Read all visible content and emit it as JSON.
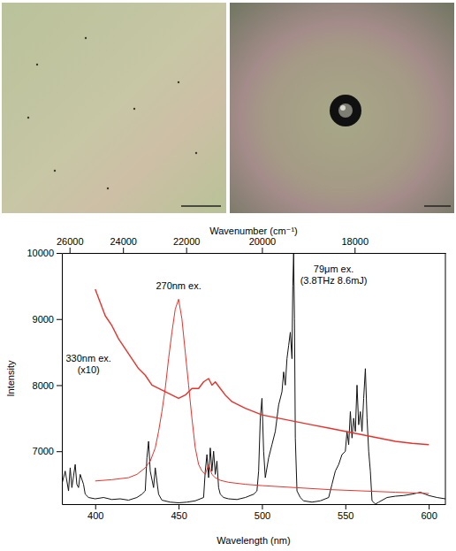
{
  "chart_data": {
    "type": "line",
    "xlabel": "Wavelength (nm)",
    "ylabel": "Intensity",
    "x2label": "Wavenumber (cm⁻¹)",
    "xlim": [
      380,
      610
    ],
    "xticks": [
      400,
      450,
      500,
      550,
      600
    ],
    "x2ticks": [
      {
        "value": 384.62,
        "label": "26000"
      },
      {
        "value": 416.67,
        "label": "24000"
      },
      {
        "value": 454.55,
        "label": "22000"
      },
      {
        "value": 500,
        "label": "20000"
      },
      {
        "value": 555.56,
        "label": "18000"
      }
    ],
    "ylim": [
      6200,
      10000
    ],
    "yticks": [
      7000,
      8000,
      9000,
      10000
    ],
    "grid": false,
    "series": [
      {
        "color": "#111111",
        "x": [
          380,
          382,
          384,
          385,
          386,
          388,
          389,
          390,
          391,
          393,
          394,
          396,
          400,
          405,
          410,
          415,
          420,
          425,
          428,
          430,
          431,
          432,
          433,
          435,
          436,
          437,
          438,
          440,
          445,
          450,
          455,
          460,
          465,
          466,
          467,
          468,
          469,
          470,
          471,
          472,
          473,
          474,
          475,
          477,
          480,
          485,
          490,
          495,
          497,
          498,
          499,
          500,
          501,
          502,
          504,
          506,
          508,
          510,
          512,
          513,
          514,
          515,
          516,
          517,
          518,
          518.5,
          519,
          519.5,
          520,
          521,
          523,
          525,
          530,
          535,
          540,
          542,
          544,
          546,
          548,
          550,
          551,
          552,
          553,
          554,
          555,
          556,
          557,
          558,
          559,
          560,
          561,
          562,
          563,
          564,
          565,
          566,
          568,
          570,
          575,
          580,
          585,
          590,
          595,
          600,
          605,
          610
        ],
        "values": [
          6500,
          6700,
          6400,
          6750,
          6450,
          6800,
          6500,
          6450,
          6650,
          6500,
          6350,
          6300,
          6280,
          6300,
          6270,
          6280,
          6260,
          6300,
          6350,
          6400,
          6900,
          7150,
          6700,
          6450,
          6750,
          6550,
          6350,
          6260,
          6230,
          6220,
          6230,
          6250,
          6300,
          6700,
          6950,
          6600,
          7050,
          6700,
          7000,
          6650,
          6850,
          6450,
          6350,
          6300,
          6280,
          6270,
          6300,
          6350,
          6400,
          6700,
          7500,
          7800,
          7000,
          6600,
          6900,
          7100,
          7300,
          7700,
          7900,
          8200,
          8000,
          8400,
          8600,
          8800,
          8400,
          9500,
          10000,
          9000,
          7200,
          6400,
          6300,
          6250,
          6230,
          6250,
          6300,
          6500,
          6700,
          6800,
          6950,
          7000,
          7300,
          7100,
          7600,
          7200,
          7500,
          7300,
          8000,
          7400,
          7600,
          7300,
          7800,
          8250,
          7500,
          7000,
          6700,
          6250,
          6200,
          6230,
          6300,
          6320,
          6330,
          6350,
          6380,
          6330,
          6300,
          6280
        ]
      },
      {
        "color": "#e8322c",
        "x": [
          400,
          410,
          420,
          425,
          430,
          433,
          436,
          438,
          440,
          442,
          444,
          446,
          448,
          450,
          452,
          454,
          456,
          458,
          460,
          462,
          464,
          466,
          468,
          470,
          472,
          475,
          480,
          490,
          500,
          520,
          540,
          560,
          580,
          600
        ],
        "values": [
          6550,
          6570,
          6600,
          6650,
          6750,
          6850,
          7050,
          7300,
          7600,
          7950,
          8400,
          8800,
          9150,
          9300,
          9000,
          8500,
          8000,
          7500,
          7050,
          6800,
          6700,
          6650,
          6800,
          6650,
          6600,
          6560,
          6530,
          6500,
          6480,
          6450,
          6420,
          6400,
          6380,
          6360
        ]
      },
      {
        "color": "#e8322c",
        "x": [
          400,
          403,
          406,
          410,
          414,
          418,
          422,
          426,
          430,
          434,
          438,
          442,
          446,
          450,
          454,
          458,
          462,
          465,
          468,
          470,
          472,
          475,
          478,
          482,
          486,
          490,
          495,
          500,
          510,
          520,
          530,
          540,
          550,
          560,
          570,
          580,
          590,
          600
        ],
        "values": [
          9450,
          9250,
          9050,
          8900,
          8700,
          8550,
          8400,
          8250,
          8150,
          8000,
          7950,
          7900,
          7850,
          7800,
          7850,
          7950,
          7950,
          8050,
          8100,
          8000,
          8050,
          7950,
          7850,
          7750,
          7700,
          7650,
          7600,
          7550,
          7500,
          7450,
          7400,
          7350,
          7300,
          7250,
          7200,
          7150,
          7120,
          7100
        ]
      }
    ],
    "annotations": [
      {
        "text": [
          "270nm ex."
        ],
        "x": 450,
        "y": 9450
      },
      {
        "text": [
          "79μm ex.",
          "(3.8THz 8.6mJ)"
        ],
        "x": 543,
        "y": 9700
      },
      {
        "text": [
          "330nm ex.",
          "(x10)"
        ],
        "x": 396,
        "y": 8350
      }
    ]
  }
}
